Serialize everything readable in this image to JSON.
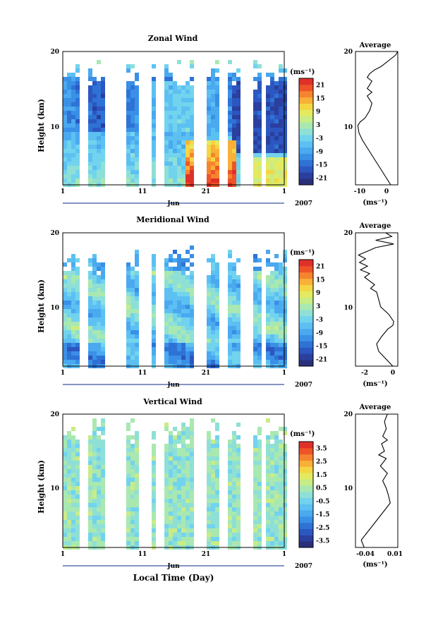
{
  "footer": {
    "xlabel": "Local Time (Day)"
  },
  "colormap": [
    "#2a2f7a",
    "#2b3f9e",
    "#2c56c0",
    "#2e72d6",
    "#3a8fe6",
    "#4aa9ef",
    "#5cc0f2",
    "#72d3ee",
    "#8ee0d6",
    "#a9e8b0",
    "#c8ec86",
    "#e4ea60",
    "#f4d644",
    "#f8b038",
    "#f5842e",
    "#ee5428",
    "#e0302a"
  ],
  "chart_data": [
    {
      "type": "heatmap",
      "title": "Zonal Wind",
      "ylabel": "Height (km)",
      "yticks": [
        "20",
        "10"
      ],
      "ylim": [
        2,
        20
      ],
      "xticks": [
        "1",
        "11",
        "21",
        "1"
      ],
      "xlabel_month": "Jun",
      "year": "2007",
      "colorbar_unit": "(ms⁻¹)",
      "colorbar_ticks": [
        "21",
        "15",
        "9",
        "3",
        "-3",
        "-9",
        "-15",
        "-21"
      ],
      "colorbar_range": [
        -24,
        24
      ],
      "average": {
        "title": "Average",
        "yticks": [
          "20",
          "10"
        ],
        "xticks": [
          "-10",
          "0"
        ],
        "xlim": [
          -14,
          4
        ],
        "unit": "(ms⁻¹)",
        "profile": [
          [
            2,
            1
          ],
          [
            3,
            -1
          ],
          [
            4,
            -3
          ],
          [
            5,
            -5
          ],
          [
            6,
            -7
          ],
          [
            7,
            -9
          ],
          [
            8,
            -11
          ],
          [
            9,
            -12.5
          ],
          [
            10,
            -13
          ],
          [
            10.5,
            -12
          ],
          [
            11,
            -10
          ],
          [
            12,
            -8
          ],
          [
            13,
            -7
          ],
          [
            14,
            -9
          ],
          [
            14.5,
            -7
          ],
          [
            15,
            -9
          ],
          [
            15.5,
            -8
          ],
          [
            16,
            -7
          ],
          [
            16.5,
            -9
          ],
          [
            17,
            -8
          ],
          [
            17.5,
            -6
          ],
          [
            18,
            -3
          ],
          [
            18.5,
            -1
          ],
          [
            19,
            1
          ],
          [
            19.5,
            3
          ],
          [
            20,
            4
          ]
        ]
      }
    },
    {
      "type": "heatmap",
      "title": "Meridional Wind",
      "ylabel": "Height (km)",
      "yticks": [
        "20",
        "10"
      ],
      "ylim": [
        2,
        20
      ],
      "xticks": [
        "1",
        "11",
        "21",
        "1"
      ],
      "xlabel_month": "Jun",
      "year": "2007",
      "colorbar_unit": "(ms⁻¹)",
      "colorbar_ticks": [
        "21",
        "15",
        "9",
        "3",
        "-3",
        "-9",
        "-15",
        "-21"
      ],
      "colorbar_range": [
        -24,
        24
      ],
      "average": {
        "title": "Average",
        "yticks": [
          "20",
          "10"
        ],
        "xticks": [
          "-2",
          "0"
        ],
        "xlim": [
          -3.5,
          0.7
        ],
        "unit": "(ms⁻¹)",
        "profile": [
          [
            2,
            0.2
          ],
          [
            3,
            -0.5
          ],
          [
            4,
            -1.2
          ],
          [
            5,
            -1.4
          ],
          [
            6,
            -0.9
          ],
          [
            7,
            -0.3
          ],
          [
            7.5,
            0.2
          ],
          [
            8,
            0.3
          ],
          [
            9,
            -0.2
          ],
          [
            10,
            -1.0
          ],
          [
            11,
            -1.2
          ],
          [
            12,
            -1.4
          ],
          [
            12.5,
            -2.0
          ],
          [
            13,
            -1.6
          ],
          [
            14,
            -2.6
          ],
          [
            14.5,
            -2.1
          ],
          [
            15,
            -3.0
          ],
          [
            15.5,
            -2.3
          ],
          [
            16,
            -3.1
          ],
          [
            16.5,
            -2.5
          ],
          [
            17,
            -3.2
          ],
          [
            18,
            -1.5
          ],
          [
            18.5,
            0.3
          ],
          [
            19,
            -1.5
          ],
          [
            19.5,
            0.1
          ],
          [
            20,
            -0.5
          ]
        ]
      }
    },
    {
      "type": "heatmap",
      "title": "Vertical Wind",
      "ylabel": "Height (km)",
      "yticks": [
        "20",
        "10"
      ],
      "ylim": [
        2,
        20
      ],
      "xticks": [
        "1",
        "11",
        "21",
        "1"
      ],
      "xlabel_month": "Jun",
      "year": "2007",
      "colorbar_unit": "(ms⁻¹)",
      "colorbar_ticks": [
        "3.5",
        "2.5",
        "1.5",
        "0.5",
        "-0.5",
        "-1.5",
        "-2.5",
        "-3.5"
      ],
      "colorbar_range": [
        -4,
        4
      ],
      "average": {
        "title": "Average",
        "yticks": [
          "20",
          "10"
        ],
        "xticks": [
          "-0.04",
          "0.01"
        ],
        "xlim": [
          -0.055,
          0.018
        ],
        "unit": "(ms⁻¹)",
        "profile": [
          [
            2,
            -0.04
          ],
          [
            3,
            -0.045
          ],
          [
            4,
            -0.035
          ],
          [
            5,
            -0.025
          ],
          [
            6,
            -0.015
          ],
          [
            7,
            -0.005
          ],
          [
            8,
            0.005
          ],
          [
            9,
            0.002
          ],
          [
            10,
            -0.002
          ],
          [
            11,
            -0.008
          ],
          [
            12,
            0.0
          ],
          [
            13,
            -0.012
          ],
          [
            14,
            -0.002
          ],
          [
            14.5,
            -0.015
          ],
          [
            15,
            -0.005
          ],
          [
            16,
            -0.01
          ],
          [
            16.5,
            0.0
          ],
          [
            17,
            -0.008
          ],
          [
            18,
            -0.002
          ],
          [
            19,
            -0.005
          ],
          [
            20,
            0.0
          ]
        ]
      }
    }
  ]
}
